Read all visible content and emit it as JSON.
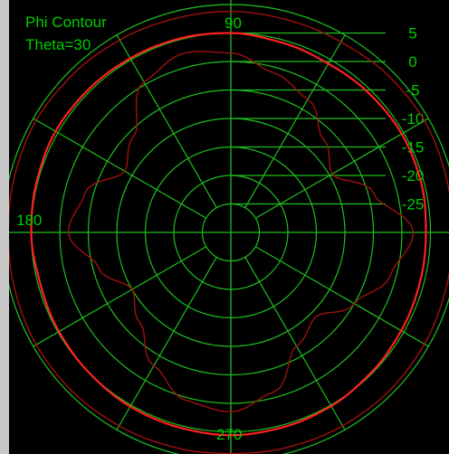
{
  "chart_data": {
    "type": "polar",
    "title": "Phi Contour",
    "subtitle": "Theta=30",
    "angle_labels": [
      "90",
      "180",
      "270"
    ],
    "radial_ticks": [
      5,
      0,
      -5,
      -10,
      -15,
      -20,
      -25
    ],
    "radial_range": [
      -30,
      10
    ],
    "spoke_step_deg": 30,
    "colors": {
      "background": "#000000",
      "frame": "#c6c6c6",
      "grid": "#1fbf1f",
      "text": "#00cc00",
      "series_main": "#ff2020",
      "series_secondary": "#a01010"
    },
    "series": [
      {
        "style": "main",
        "angles_deg": [
          0,
          15,
          30,
          45,
          60,
          75,
          90,
          105,
          120,
          135,
          150,
          165,
          180,
          195,
          210,
          225,
          240,
          255,
          270,
          285,
          300,
          315,
          330,
          345
        ],
        "values_db": [
          4.2,
          4.5,
          4.6,
          4.4,
          4.2,
          4.5,
          5.0,
          5.2,
          5.3,
          5.4,
          5.5,
          5.2,
          5.0,
          4.6,
          4.8,
          5.0,
          5.3,
          5.4,
          5.6,
          5.4,
          5.2,
          4.8,
          4.5,
          4.3
        ]
      },
      {
        "style": "secondary",
        "angles_deg": [
          0,
          15,
          30,
          45,
          60,
          75,
          90,
          105,
          120,
          135,
          150,
          165,
          180,
          195,
          210,
          225,
          240,
          255,
          270,
          285,
          300,
          315,
          330,
          345
        ],
        "values_db": [
          8.8,
          9.0,
          9.2,
          9.0,
          8.6,
          8.6,
          8.8,
          8.8,
          9.0,
          9.2,
          9.4,
          9.2,
          9.0,
          9.2,
          9.4,
          9.4,
          9.2,
          9.0,
          8.8,
          9.0,
          9.2,
          9.3,
          9.2,
          9.0
        ]
      },
      {
        "style": "secondary",
        "angles_deg": [
          0,
          15,
          30,
          45,
          60,
          75,
          90,
          105,
          120,
          135,
          150,
          165,
          180,
          195,
          210,
          225,
          240,
          255,
          270,
          285,
          300,
          315,
          330,
          345
        ],
        "values_db": [
          2.0,
          -4.0,
          -9.5,
          -7.0,
          -3.0,
          -1.0,
          1.5,
          2.5,
          0.5,
          -6.0,
          -8.5,
          -3.5,
          -1.5,
          -6.0,
          -10.0,
          -7.5,
          -3.0,
          0.5,
          1.5,
          -1.0,
          -7.0,
          -9.0,
          -5.0,
          -1.0
        ]
      }
    ]
  }
}
